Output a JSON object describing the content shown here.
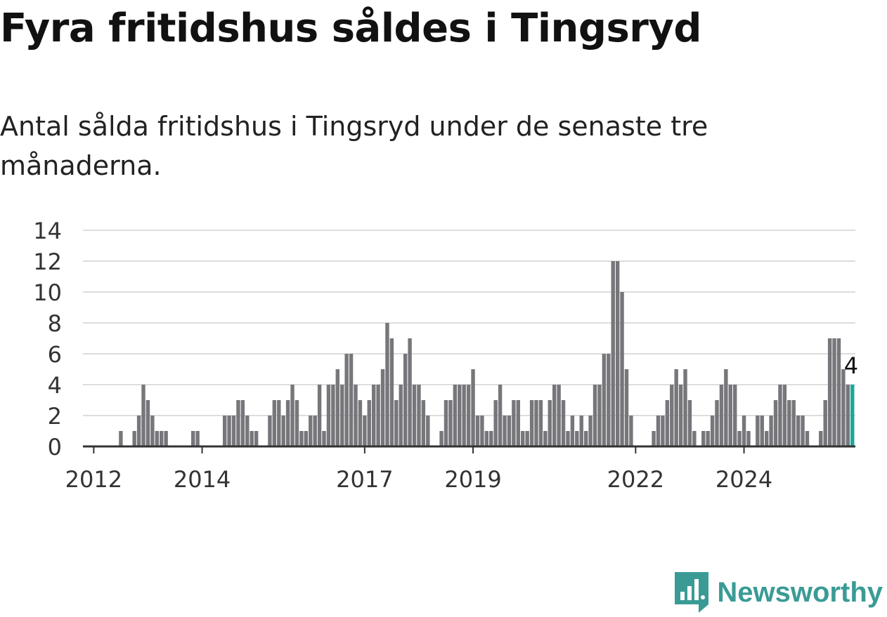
{
  "header": {
    "title": "Fyra fritidshus såldes i Tingsryd",
    "subtitle": "Antal sålda fritidshus i Tingsryd under de senaste tre månaderna."
  },
  "brand": {
    "name": "Newsworthy",
    "color": "#3a9b95"
  },
  "colors": {
    "bar": "#76767b",
    "highlight": "#1aa79c",
    "grid": "#dddddd",
    "axis": "#333333"
  },
  "chart_data": {
    "type": "bar",
    "title": "Fyra fritidshus såldes i Tingsryd",
    "subtitle": "Antal sålda fritidshus i Tingsryd under de senaste tre månaderna.",
    "xlabel": "",
    "ylabel": "",
    "ylim": [
      0,
      14
    ],
    "yticks": [
      0,
      2,
      4,
      6,
      8,
      10,
      12,
      14
    ],
    "x_tick_labels": [
      "2012",
      "2014",
      "2017",
      "2019",
      "2022",
      "2024"
    ],
    "grid": true,
    "legend": "none",
    "start": "2011-11",
    "granularity": "month",
    "values": [
      0,
      0,
      0,
      0,
      0,
      0,
      0,
      0,
      1,
      0,
      0,
      1,
      2,
      4,
      3,
      2,
      1,
      1,
      1,
      0,
      0,
      0,
      0,
      0,
      1,
      1,
      0,
      0,
      0,
      0,
      0,
      2,
      2,
      2,
      3,
      3,
      2,
      1,
      1,
      0,
      0,
      2,
      3,
      3,
      2,
      3,
      4,
      3,
      1,
      1,
      2,
      2,
      4,
      1,
      4,
      4,
      5,
      4,
      6,
      6,
      4,
      3,
      2,
      3,
      4,
      4,
      5,
      8,
      7,
      3,
      4,
      6,
      7,
      4,
      4,
      3,
      2,
      0,
      0,
      1,
      3,
      3,
      4,
      4,
      4,
      4,
      5,
      2,
      2,
      1,
      1,
      3,
      4,
      2,
      2,
      3,
      3,
      1,
      1,
      3,
      3,
      3,
      1,
      3,
      4,
      4,
      3,
      1,
      2,
      1,
      2,
      1,
      2,
      4,
      4,
      6,
      6,
      12,
      12,
      10,
      5,
      2,
      0,
      0,
      0,
      0,
      1,
      2,
      2,
      3,
      4,
      5,
      4,
      5,
      3,
      1,
      0,
      1,
      1,
      2,
      3,
      4,
      5,
      4,
      4,
      1,
      2,
      1,
      0,
      2,
      2,
      1,
      2,
      3,
      4,
      4,
      3,
      3,
      2,
      2,
      1,
      0,
      0,
      1,
      3,
      7,
      7,
      7,
      5,
      4,
      4
    ],
    "highlight_last": true,
    "annotations": [
      {
        "label": "4"
      }
    ]
  }
}
